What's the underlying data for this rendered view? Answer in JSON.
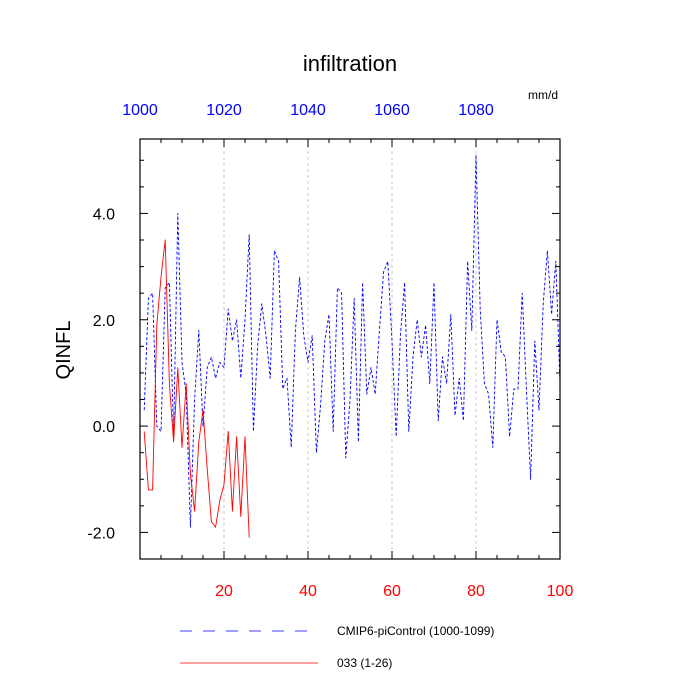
{
  "chart_data": {
    "type": "line",
    "title": "infiltration",
    "ylabel": "QINFL",
    "units_label": "mm/d",
    "xlim": [
      0,
      100
    ],
    "ylim": [
      -2.5,
      5.4
    ],
    "grid": "vertical dashed at bottom x-ticks",
    "bottom_axis": {
      "color": "#ff0000",
      "ticks": [
        20,
        40,
        60,
        80,
        100
      ],
      "tick_labels": [
        "20",
        "40",
        "60",
        "80",
        "100"
      ]
    },
    "top_axis": {
      "color": "#0000ff",
      "ticks": [
        1000,
        1020,
        1040,
        1060,
        1080
      ],
      "tick_labels": [
        "1000",
        "1020",
        "1040",
        "1060",
        "1080"
      ]
    },
    "left_axis": {
      "ticks": [
        -2.0,
        0.0,
        2.0,
        4.0
      ],
      "tick_labels": [
        "-2.0",
        "0.0",
        "2.0",
        "4.0"
      ]
    },
    "legend_position": "bottom",
    "series": [
      {
        "name": "CMIP6-piControl (1000-1099)",
        "color": "#0000ff",
        "style": "dashed",
        "x": [
          1,
          2,
          3,
          4,
          5,
          6,
          7,
          8,
          9,
          10,
          11,
          12,
          13,
          14,
          15,
          16,
          17,
          18,
          19,
          20,
          21,
          22,
          23,
          24,
          25,
          26,
          27,
          28,
          29,
          30,
          31,
          32,
          33,
          34,
          35,
          36,
          37,
          38,
          39,
          40,
          41,
          42,
          43,
          44,
          45,
          46,
          47,
          48,
          49,
          50,
          51,
          52,
          53,
          54,
          55,
          56,
          57,
          58,
          59,
          60,
          61,
          62,
          63,
          64,
          65,
          66,
          67,
          68,
          69,
          70,
          71,
          72,
          73,
          74,
          75,
          76,
          77,
          78,
          79,
          80,
          81,
          82,
          83,
          84,
          85,
          86,
          87,
          88,
          89,
          90,
          91,
          92,
          93,
          94,
          95,
          96,
          97,
          98,
          99,
          100
        ],
        "values": [
          0.3,
          2.4,
          2.5,
          -0.0,
          -0.1,
          2.6,
          2.7,
          -0.2,
          4.0,
          1.2,
          0.6,
          -1.9,
          0.5,
          1.8,
          0.0,
          1.1,
          1.3,
          0.9,
          1.2,
          1.1,
          2.2,
          1.6,
          2.0,
          0.9,
          2.0,
          3.6,
          -0.1,
          1.5,
          2.3,
          1.7,
          0.9,
          3.3,
          3.1,
          0.7,
          0.9,
          -0.4,
          1.8,
          2.8,
          1.7,
          1.2,
          1.7,
          -0.5,
          0.4,
          1.6,
          2.1,
          -0.1,
          2.6,
          2.5,
          -0.6,
          0.5,
          2.4,
          -0.3,
          2.7,
          0.6,
          1.1,
          0.6,
          1.8,
          2.9,
          3.1,
          1.6,
          -0.2,
          1.7,
          2.7,
          -0.1,
          1.3,
          2.0,
          1.3,
          1.9,
          0.8,
          2.7,
          0.1,
          1.3,
          0.8,
          2.1,
          0.2,
          0.9,
          0.1,
          3.1,
          1.8,
          5.1,
          2.2,
          0.8,
          0.6,
          -0.4,
          2.0,
          1.4,
          1.3,
          -0.2,
          0.7,
          0.7,
          2.5,
          0.7,
          -1.0,
          1.6,
          0.3,
          2.3,
          3.3,
          2.1,
          3.1,
          0.8
        ]
      },
      {
        "name": "033 (1-26)",
        "color": "#ff0000",
        "style": "solid",
        "x": [
          1,
          2,
          3,
          4,
          5,
          6,
          7,
          8,
          9,
          10,
          11,
          12,
          13,
          14,
          15,
          16,
          17,
          18,
          19,
          20,
          21,
          22,
          23,
          24,
          25,
          26
        ],
        "values": [
          -0.1,
          -1.2,
          -1.2,
          1.9,
          2.8,
          3.5,
          0.8,
          -0.3,
          1.1,
          -0.4,
          0.8,
          -0.9,
          -1.6,
          -0.3,
          0.3,
          -0.8,
          -1.8,
          -1.9,
          -1.4,
          -1.1,
          -0.1,
          -1.6,
          -0.2,
          -1.7,
          -0.2,
          -2.1
        ]
      }
    ]
  }
}
